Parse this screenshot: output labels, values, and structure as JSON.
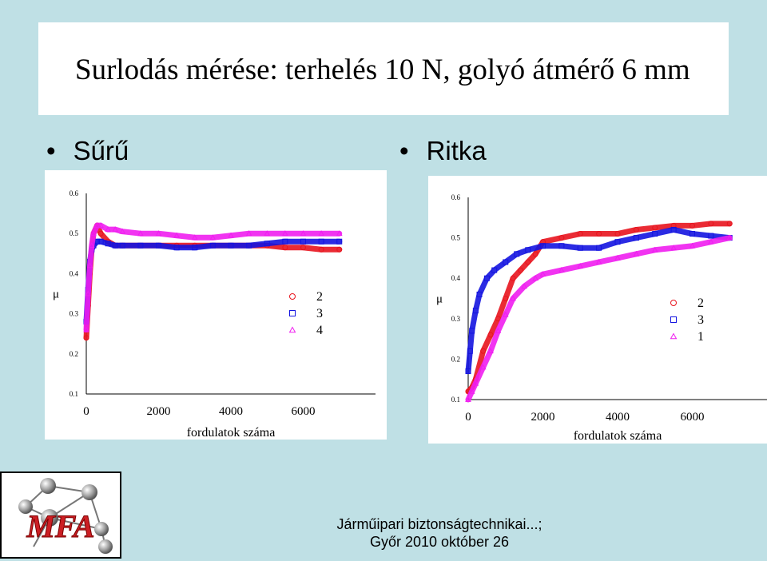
{
  "slide": {
    "title": "Surlodás mérése: terhelés 10 N, golyó átmérő 6 mm",
    "bullet_left": "Sűrű",
    "bullet_right": "Ritka",
    "bullet_glyph": "•",
    "footer_line1": "Járműipari biztonságtechnikai...;",
    "footer_line2": "Győr 2010 október 26",
    "logo_text": "MFA"
  },
  "colors": {
    "red": "#e8141e",
    "blue": "#1414e0",
    "magenta": "#f01ef0",
    "logo_red": "#cc1f24",
    "background": "#bfe0e5"
  },
  "chart_data": [
    {
      "type": "scatter",
      "panel": "Sűrű",
      "ylabel": "μ",
      "xlabel": "fordulatok száma",
      "xlim": [
        0,
        8000
      ],
      "ylim": [
        0.1,
        0.6
      ],
      "xticks": [
        "0",
        "2000",
        "4000",
        "6000"
      ],
      "yticks": [
        "0.1",
        "0.2",
        "0.3",
        "0.4",
        "0.5",
        "0.6"
      ],
      "legend_position": "right",
      "series": [
        {
          "name": "2",
          "marker": "circle",
          "color": "#e8141e",
          "x": [
            0,
            50,
            100,
            150,
            200,
            300,
            400,
            600,
            800,
            1000,
            1500,
            2000,
            2500,
            3000,
            3500,
            4000,
            4500,
            5000,
            5500,
            6000,
            6500,
            7000
          ],
          "y": [
            0.24,
            0.32,
            0.4,
            0.46,
            0.5,
            0.52,
            0.5,
            0.48,
            0.47,
            0.47,
            0.47,
            0.47,
            0.47,
            0.47,
            0.47,
            0.47,
            0.47,
            0.47,
            0.465,
            0.465,
            0.46,
            0.46
          ]
        },
        {
          "name": "3",
          "marker": "square",
          "color": "#1414e0",
          "x": [
            0,
            50,
            100,
            150,
            200,
            300,
            400,
            600,
            800,
            1000,
            1500,
            2000,
            2500,
            3000,
            3500,
            4000,
            4500,
            5000,
            5500,
            6000,
            6500,
            7000
          ],
          "y": [
            0.28,
            0.36,
            0.43,
            0.46,
            0.47,
            0.48,
            0.48,
            0.475,
            0.47,
            0.47,
            0.47,
            0.47,
            0.465,
            0.465,
            0.47,
            0.47,
            0.47,
            0.475,
            0.48,
            0.48,
            0.48,
            0.48
          ]
        },
        {
          "name": "4",
          "marker": "triangle",
          "color": "#f01ef0",
          "x": [
            0,
            50,
            100,
            150,
            200,
            300,
            400,
            600,
            800,
            1000,
            1500,
            2000,
            2500,
            3000,
            3500,
            4000,
            4500,
            5000,
            5500,
            6000,
            6500,
            7000
          ],
          "y": [
            0.26,
            0.35,
            0.42,
            0.47,
            0.5,
            0.52,
            0.52,
            0.51,
            0.51,
            0.505,
            0.5,
            0.5,
            0.495,
            0.49,
            0.49,
            0.495,
            0.5,
            0.5,
            0.5,
            0.5,
            0.5,
            0.5
          ]
        }
      ]
    },
    {
      "type": "scatter",
      "panel": "Ritka",
      "ylabel": "μ",
      "xlabel": "fordulatok száma",
      "xlim": [
        0,
        8000
      ],
      "ylim": [
        0.1,
        0.6
      ],
      "xticks": [
        "0",
        "2000",
        "4000",
        "6000"
      ],
      "yticks": [
        "0.1",
        "0.2",
        "0.3",
        "0.4",
        "0.5",
        "0.6"
      ],
      "legend_position": "right",
      "series": [
        {
          "name": "2",
          "marker": "circle",
          "color": "#e8141e",
          "x": [
            0,
            100,
            200,
            400,
            600,
            800,
            1000,
            1200,
            1400,
            1600,
            1800,
            2000,
            2500,
            3000,
            3500,
            4000,
            4500,
            5000,
            5500,
            6000,
            6500,
            7000
          ],
          "y": [
            0.12,
            0.13,
            0.15,
            0.22,
            0.26,
            0.3,
            0.35,
            0.4,
            0.42,
            0.44,
            0.46,
            0.49,
            0.5,
            0.51,
            0.51,
            0.51,
            0.52,
            0.525,
            0.53,
            0.53,
            0.535,
            0.535
          ]
        },
        {
          "name": "3",
          "marker": "square",
          "color": "#1414e0",
          "x": [
            0,
            50,
            100,
            200,
            300,
            500,
            700,
            1000,
            1300,
            1600,
            2000,
            2500,
            3000,
            3500,
            4000,
            4500,
            5000,
            5500,
            6000,
            6500,
            7000
          ],
          "y": [
            0.17,
            0.22,
            0.27,
            0.32,
            0.36,
            0.4,
            0.42,
            0.44,
            0.46,
            0.47,
            0.48,
            0.48,
            0.475,
            0.475,
            0.49,
            0.5,
            0.51,
            0.52,
            0.51,
            0.505,
            0.5
          ]
        },
        {
          "name": "1",
          "marker": "triangle",
          "color": "#f01ef0",
          "x": [
            0,
            100,
            200,
            400,
            600,
            800,
            1000,
            1200,
            1500,
            1800,
            2000,
            2500,
            3000,
            3500,
            4000,
            4500,
            5000,
            5500,
            6000,
            6500,
            7000
          ],
          "y": [
            0.1,
            0.12,
            0.14,
            0.18,
            0.22,
            0.27,
            0.31,
            0.35,
            0.38,
            0.4,
            0.41,
            0.42,
            0.43,
            0.44,
            0.45,
            0.46,
            0.47,
            0.475,
            0.48,
            0.49,
            0.5
          ]
        }
      ]
    }
  ]
}
